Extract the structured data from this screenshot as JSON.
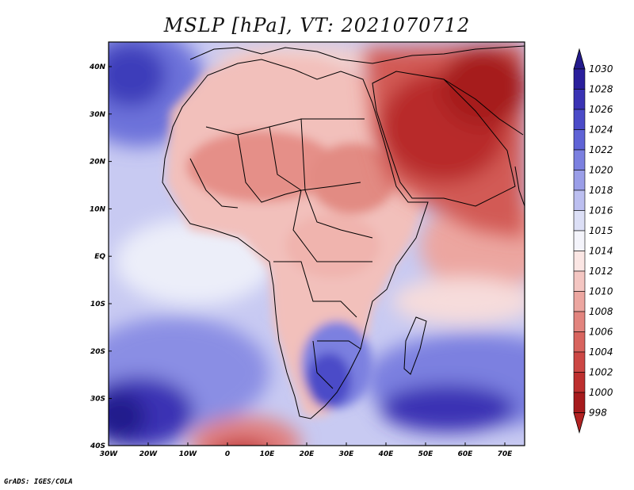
{
  "title": "MSLP [hPa], VT: 2021070712",
  "credit": "GrADS: IGES/COLA",
  "axes": {
    "lat_ticks": [
      "40N",
      "30N",
      "20N",
      "10N",
      "EQ",
      "10S",
      "20S",
      "30S",
      "40S"
    ],
    "lon_ticks": [
      "30W",
      "20W",
      "10W",
      "0",
      "10E",
      "20E",
      "30E",
      "40E",
      "50E",
      "60E",
      "70E"
    ]
  },
  "colorbar": {
    "levels": [
      "1030",
      "1028",
      "1026",
      "1024",
      "1022",
      "1020",
      "1018",
      "1016",
      "1015",
      "1014",
      "1012",
      "1010",
      "1008",
      "1006",
      "1004",
      "1002",
      "1000",
      "998"
    ],
    "colors": [
      "#2a1f9c",
      "#3a33b4",
      "#4b4bc8",
      "#5f63d6",
      "#7b80e0",
      "#9a9ee8",
      "#bcbff0",
      "#dcdff6",
      "#f4f4fb",
      "#fbe6e4",
      "#f4c6c2",
      "#eca6a0",
      "#e2847e",
      "#d8645e",
      "#cc4744",
      "#bd2f2e",
      "#a61b1d",
      "#8c0f14"
    ],
    "over_color": "#231a8c",
    "under_color": "#b22222"
  }
}
